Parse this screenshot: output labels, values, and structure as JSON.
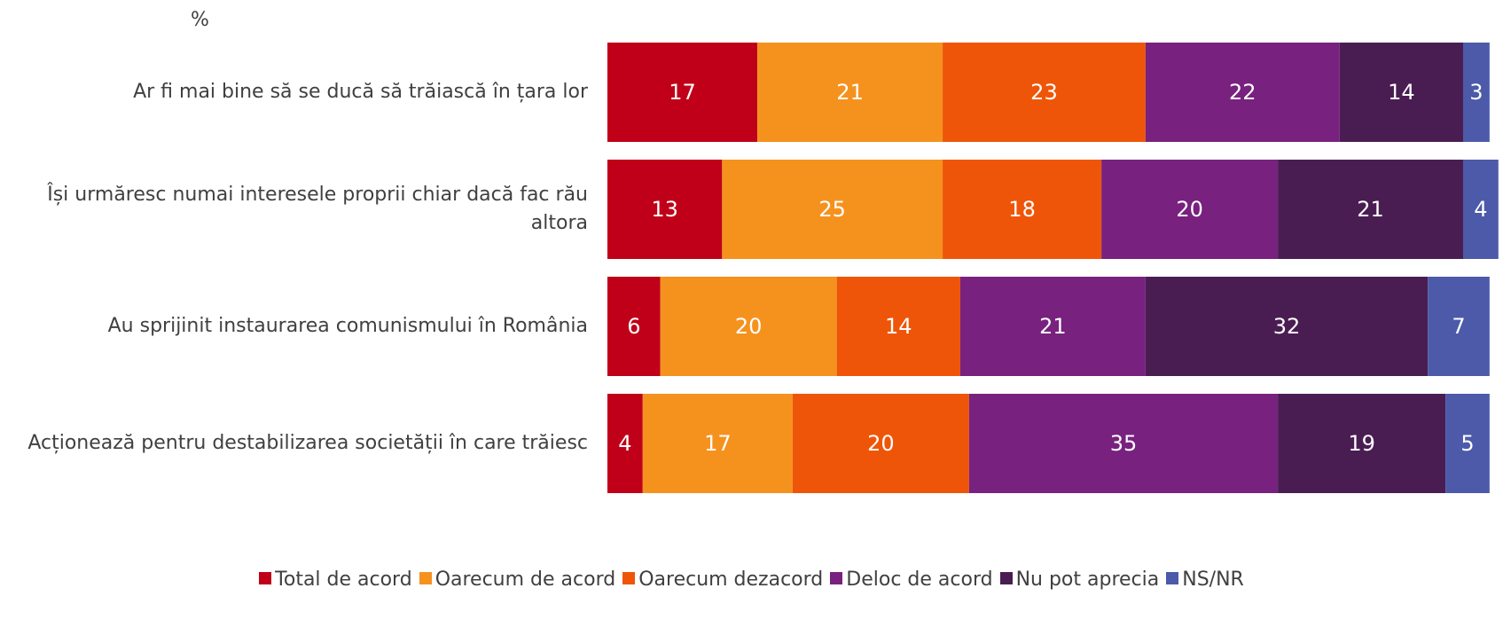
{
  "chart_data": {
    "type": "bar",
    "orientation": "horizontal",
    "stacked": true,
    "unit_label": "%",
    "categories": [
      "Ar fi mai bine să se ducă să trăiască în țara lor",
      "Își urmăresc numai interesele proprii chiar dacă fac rău altora",
      "Au sprijinit instaurarea comunismului în România",
      "Acționează pentru destabilizarea societății în care trăiesc"
    ],
    "series": [
      {
        "name": "Total de acord",
        "color": "#C00018",
        "values": [
          17,
          13,
          6,
          4
        ]
      },
      {
        "name": "Oarecum de acord",
        "color": "#F5921E",
        "values": [
          21,
          25,
          20,
          17
        ]
      },
      {
        "name": "Oarecum dezacord",
        "color": "#EF5508",
        "values": [
          23,
          18,
          14,
          20
        ]
      },
      {
        "name": "Deloc de acord",
        "color": "#78217F",
        "values": [
          22,
          20,
          21,
          35
        ]
      },
      {
        "name": "Nu pot aprecia",
        "color": "#4A1D52",
        "values": [
          14,
          21,
          32,
          19
        ]
      },
      {
        "name": "NS/NR",
        "color": "#4C5AA9",
        "values": [
          3,
          4,
          7,
          5
        ]
      }
    ],
    "legend_position": "bottom",
    "grid": false
  }
}
